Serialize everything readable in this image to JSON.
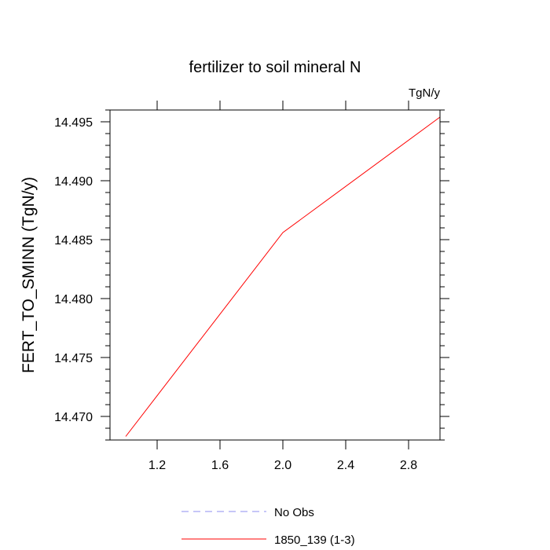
{
  "chart_data": {
    "type": "line",
    "title": "fertilizer to soil mineral N",
    "units_label": "TgN/y",
    "xlabel": "",
    "ylabel": "FERT_TO_SMINN  (TgN/y)",
    "xlim": [
      0.9,
      3.0
    ],
    "ylim": [
      14.468,
      14.496
    ],
    "x_ticks": [
      1.2,
      1.6,
      2.0,
      2.4,
      2.8
    ],
    "x_tick_labels": [
      "1.2",
      "1.6",
      "2.0",
      "2.4",
      "2.8"
    ],
    "y_ticks": [
      14.47,
      14.475,
      14.48,
      14.485,
      14.49,
      14.495
    ],
    "y_tick_labels": [
      "14.470",
      "14.475",
      "14.480",
      "14.485",
      "14.490",
      "14.495"
    ],
    "grid": false,
    "legend_position": "bottom",
    "series": [
      {
        "name": "No Obs",
        "color": "#8c8cf0",
        "dash": true,
        "x": [],
        "y": []
      },
      {
        "name": "1850_139 (1-3)",
        "color": "#ff0000",
        "dash": false,
        "x": [
          1.0,
          2.0,
          3.0
        ],
        "y": [
          14.4683,
          14.4856,
          14.4954
        ]
      }
    ]
  }
}
